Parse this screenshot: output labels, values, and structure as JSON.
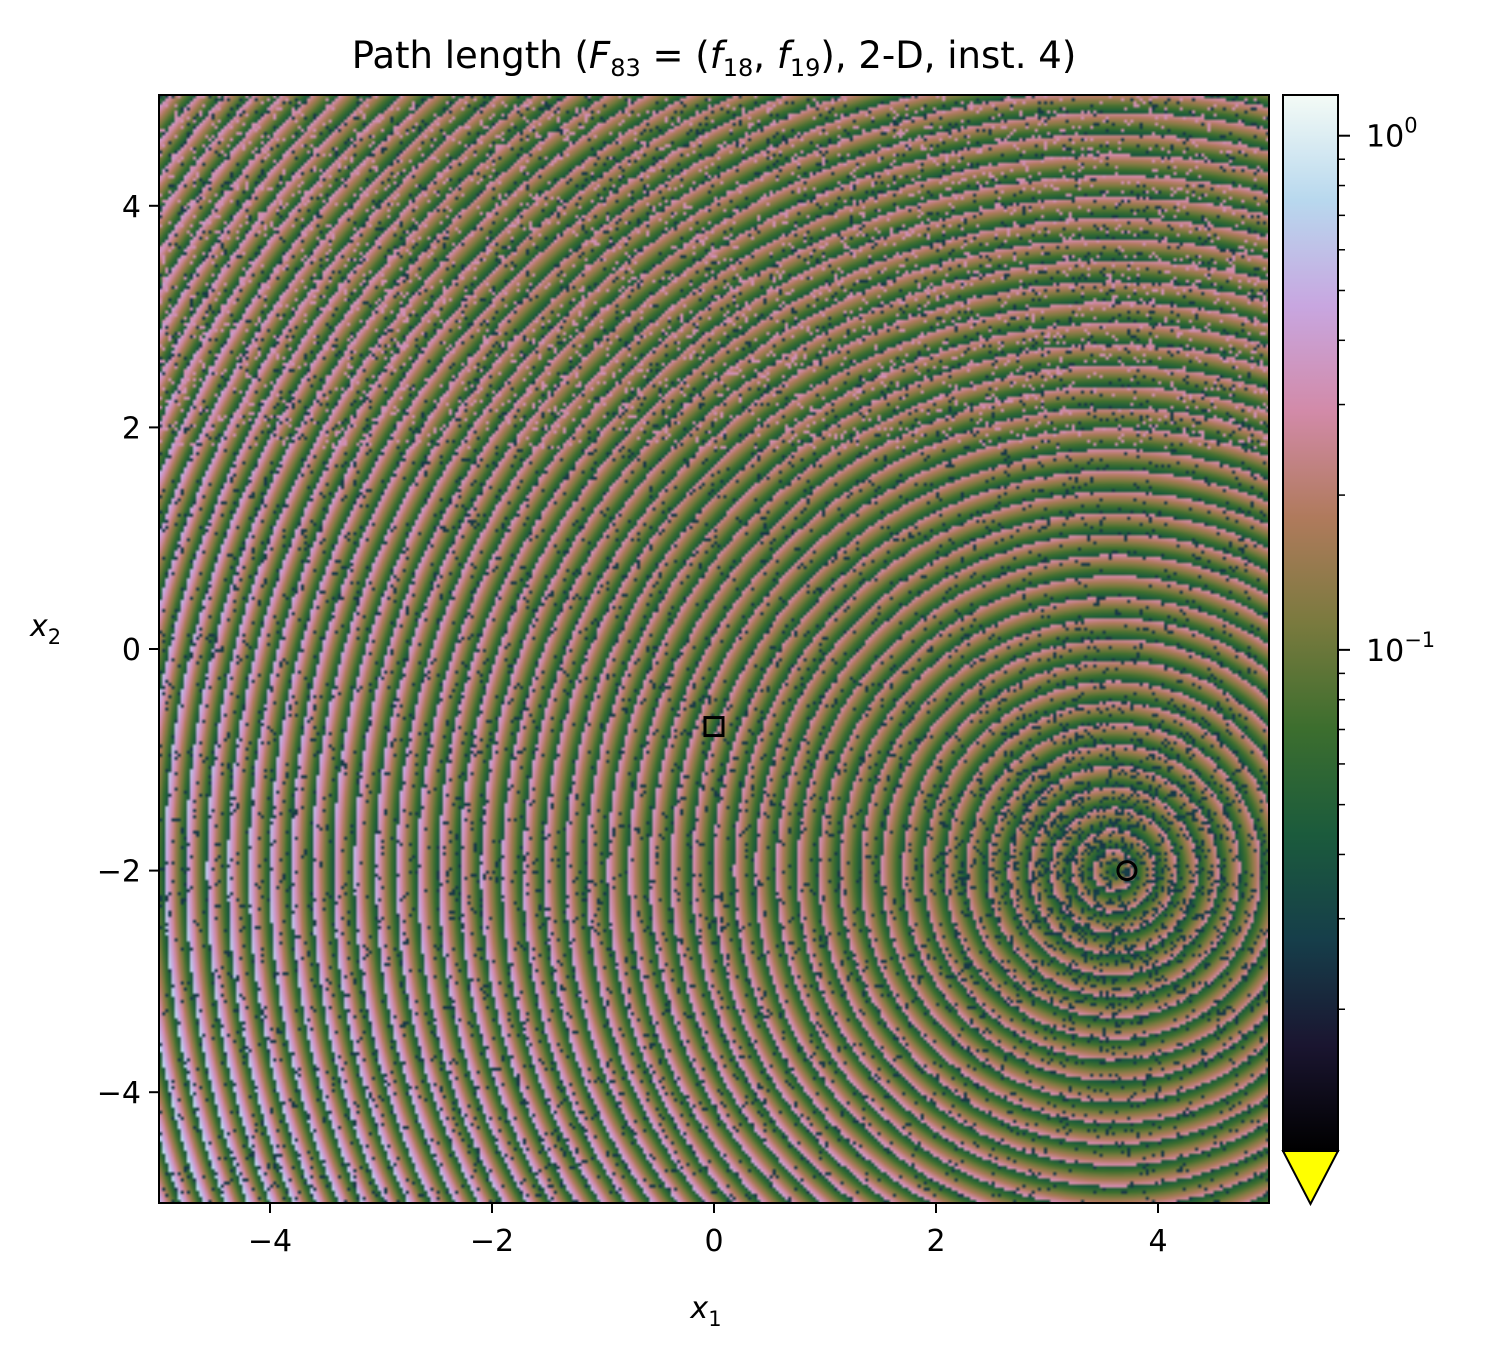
{
  "chart_data": {
    "type": "heatmap",
    "title": {
      "prefix": "Path length (",
      "F": "F",
      "F_sub": "83",
      "eq": " = (",
      "f1": "f",
      "f1_sub": "18",
      "comma": ", ",
      "f2": "f",
      "f2_sub": "19",
      "suffix": "), 2-D, inst. 4)"
    },
    "xlabel": {
      "base": "x",
      "sub": "1"
    },
    "ylabel": {
      "base": "x",
      "sub": "2"
    },
    "xlim": [
      -5,
      5
    ],
    "ylim": [
      -5,
      5
    ],
    "xticks": [
      -4,
      -2,
      0,
      2,
      4
    ],
    "yticks": [
      -4,
      -2,
      0,
      2,
      4
    ],
    "xtick_labels": [
      "−4",
      "−2",
      "0",
      "2",
      "4"
    ],
    "ytick_labels": [
      "−4",
      "−2",
      "0",
      "2",
      "4"
    ],
    "grid": false,
    "colormap": "cubehelix",
    "colorbar": {
      "scale": "log",
      "min": 0.0106,
      "max": 1.2,
      "ticks": [
        {
          "value": 1,
          "base": "10",
          "exp": "0"
        },
        {
          "value": 0.1,
          "base": "10",
          "exp": "−1"
        }
      ],
      "extend": "min",
      "under_color": "#ffff00"
    },
    "markers": [
      {
        "shape": "square",
        "x": 0.0,
        "y": -0.7
      },
      {
        "shape": "circle",
        "x": 3.72,
        "y": -2.0
      }
    ],
    "field_features": {
      "ring_center": [
        3.6,
        -2.0
      ],
      "ring_period": 0.19,
      "bright_region": "lower-left",
      "dark_noisy_region": "around the circle marker"
    }
  }
}
